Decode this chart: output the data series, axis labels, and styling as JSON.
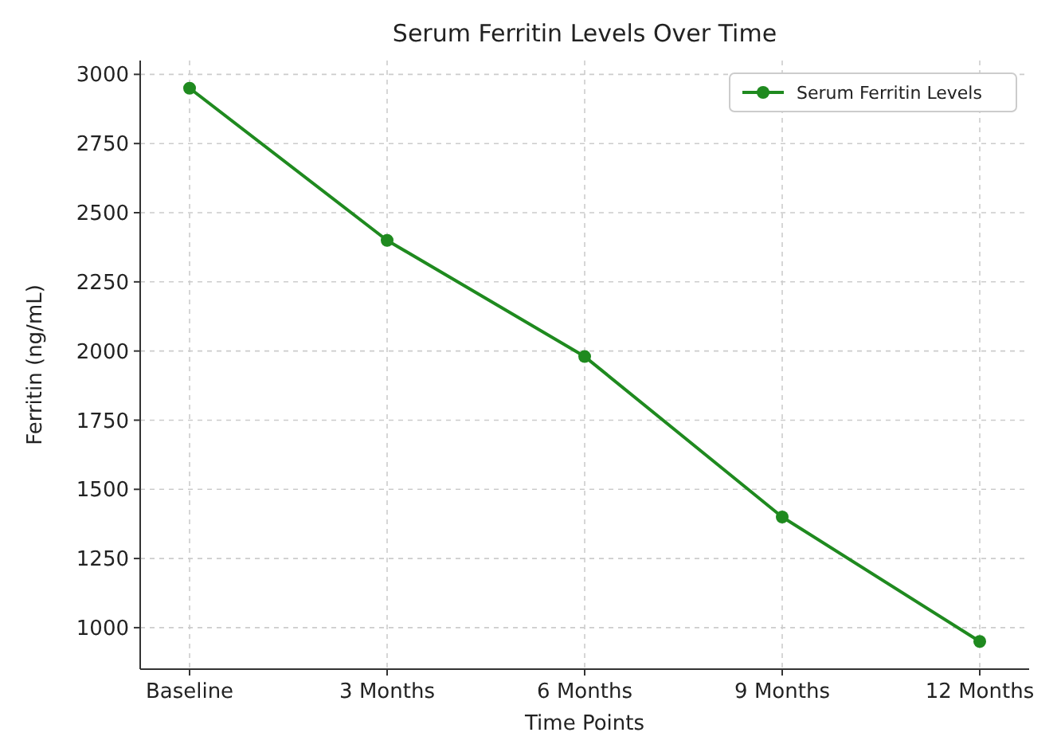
{
  "chart_data": {
    "type": "line",
    "title": "Serum Ferritin Levels Over Time",
    "xlabel": "Time Points",
    "ylabel": "Ferritin (ng/mL)",
    "categories": [
      "Baseline",
      "3 Months",
      "6 Months",
      "9 Months",
      "12 Months"
    ],
    "series": [
      {
        "name": "Serum Ferritin Levels",
        "color": "#1f8a1f",
        "values": [
          2950,
          2400,
          1980,
          1400,
          950
        ]
      }
    ],
    "ylim": [
      850,
      3050
    ],
    "yticks": [
      1000,
      1250,
      1500,
      1750,
      2000,
      2250,
      2500,
      2750,
      3000
    ],
    "grid": true,
    "legend": "top right",
    "marker": "circle",
    "line_style": "solid"
  }
}
